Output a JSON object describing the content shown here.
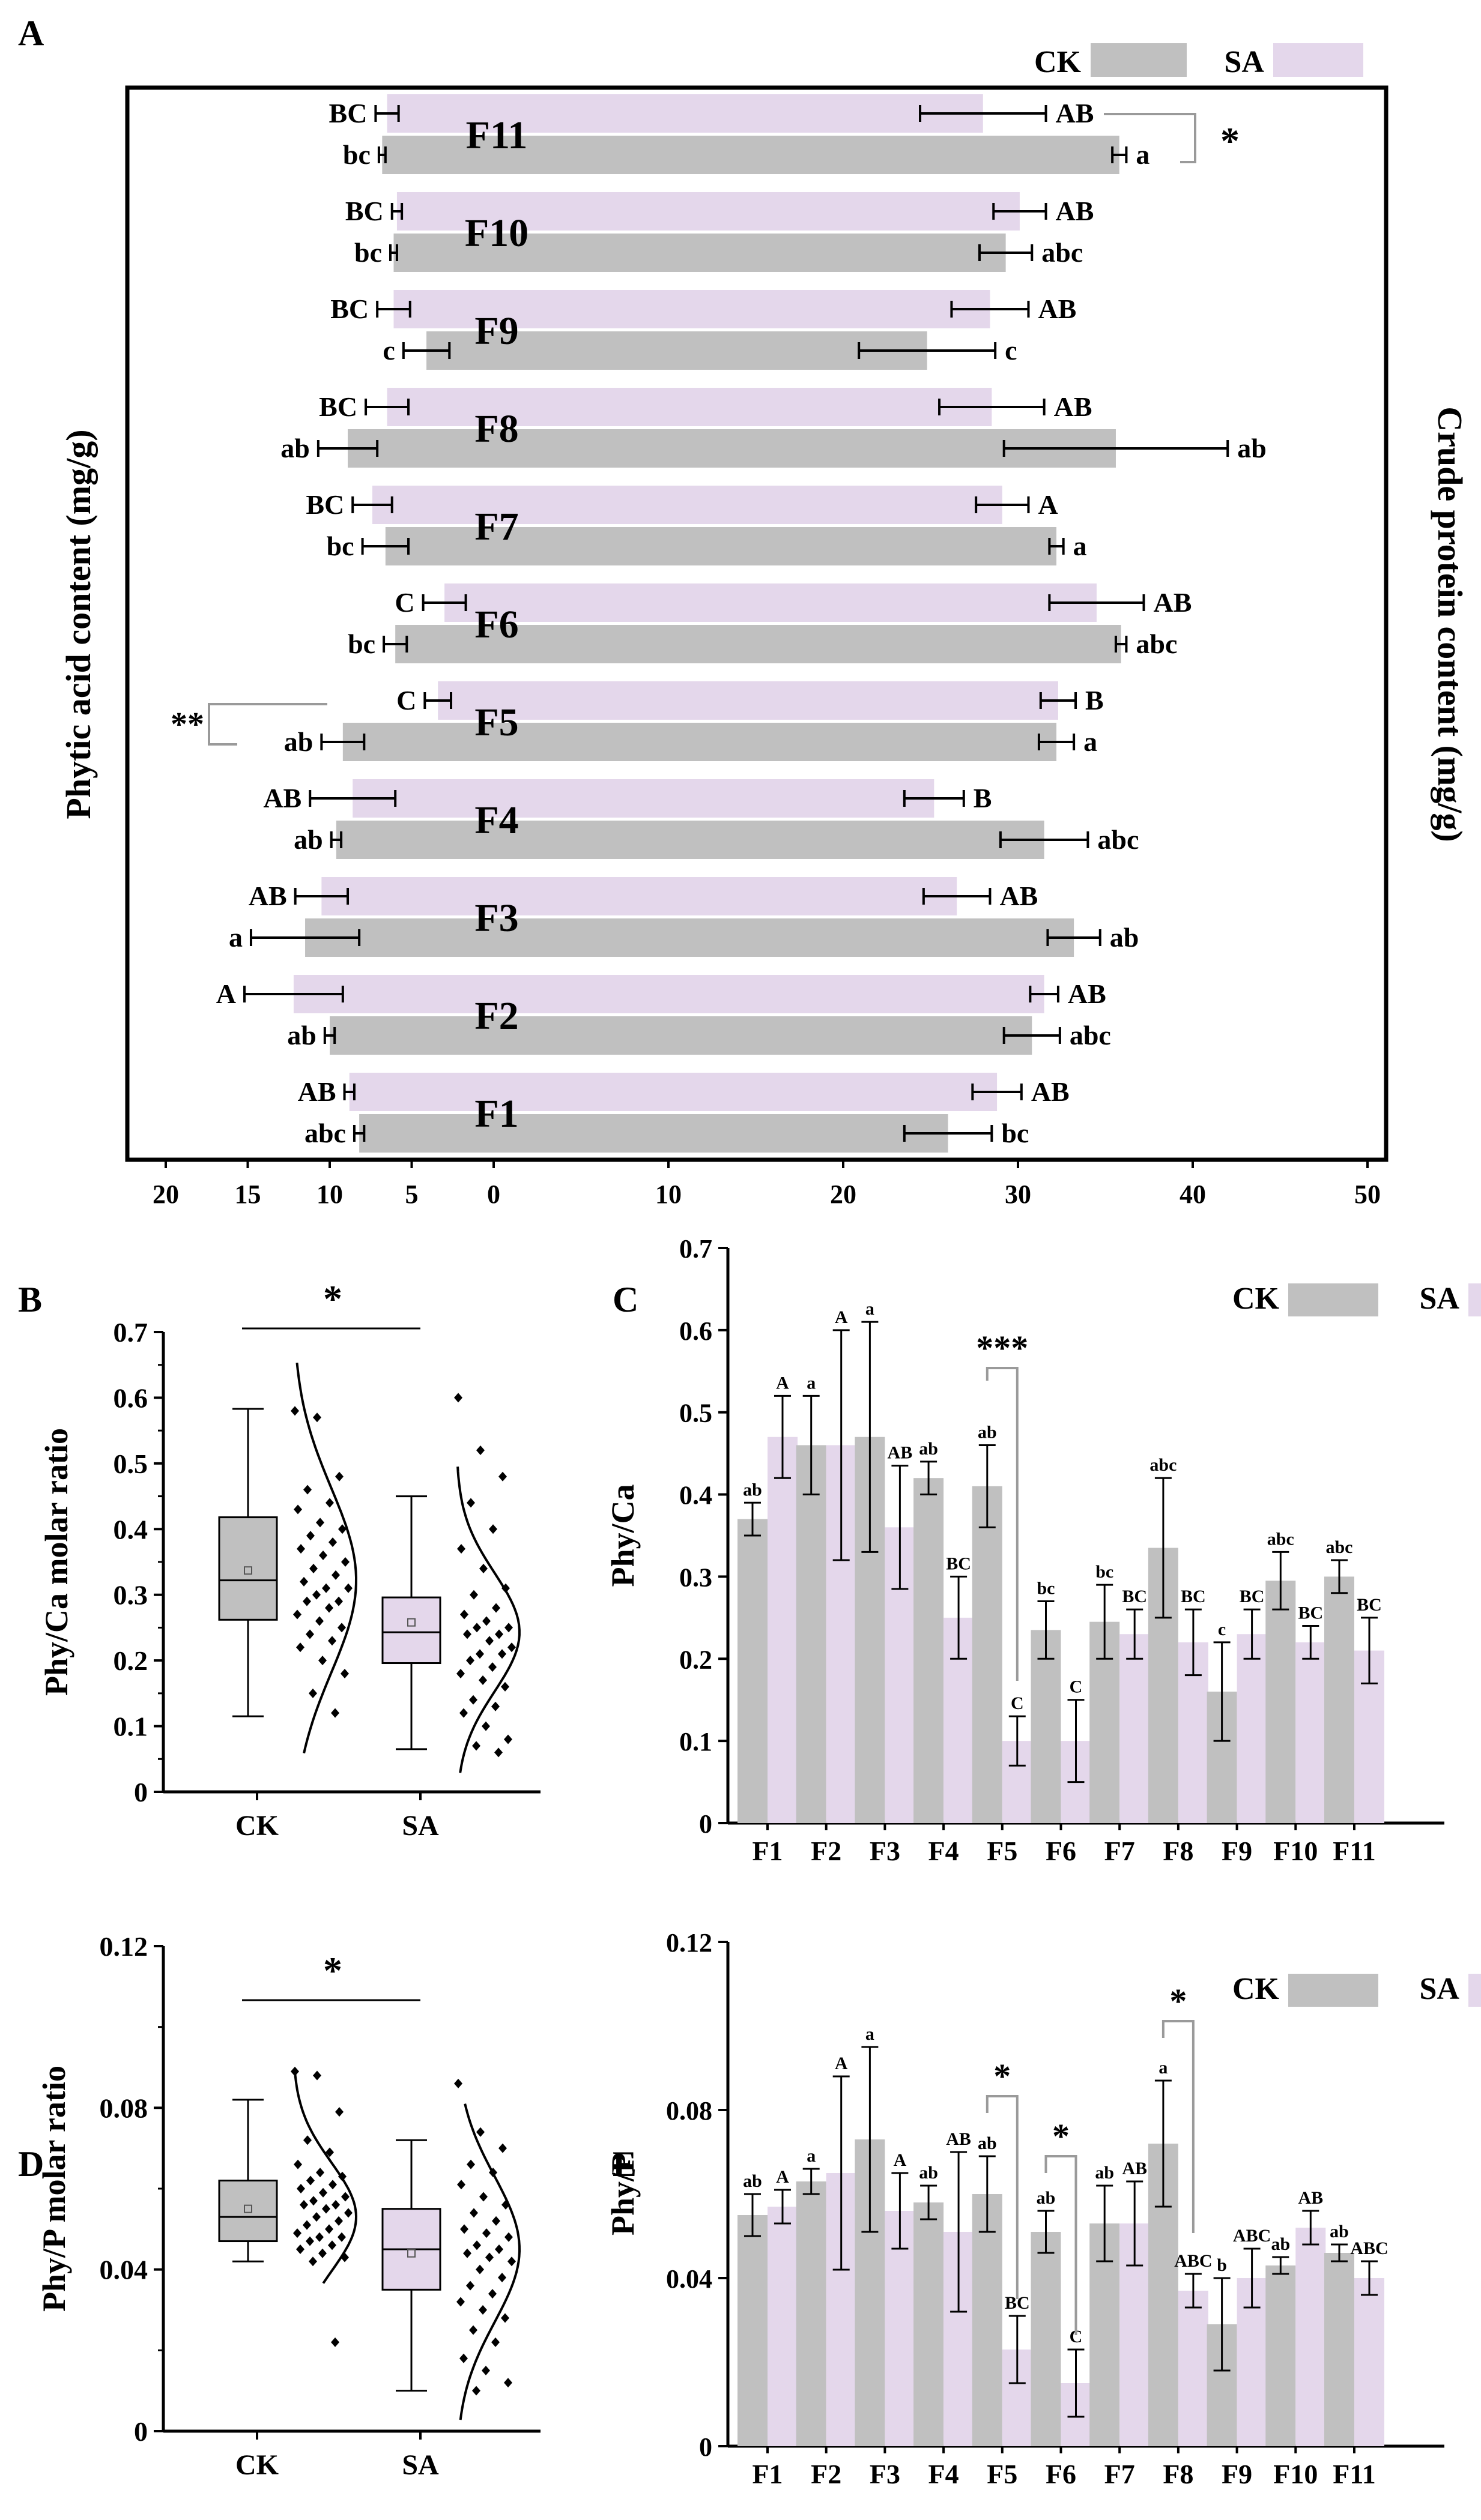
{
  "colors": {
    "ck": "#c0c0c0",
    "sa": "#e4d7eb",
    "axis": "#000000",
    "bracket": "#9a9a9a"
  },
  "chart_data": [
    {
      "panel": "A",
      "type": "bar",
      "orientation": "horizontal-butterfly",
      "legend": {
        "ck": "CK",
        "sa": "SA"
      },
      "xlabel_left": "Phytic acid content (mg/g)",
      "xlabel_right": "Crude protein content (mg/g)",
      "xlim": [
        -20,
        50
      ],
      "xticks": [
        -20,
        -15,
        -10,
        -5,
        0,
        10,
        20,
        30,
        40,
        50
      ],
      "xtick_labels": [
        "20",
        "15",
        "10",
        "5",
        "0",
        "10",
        "20",
        "30",
        "40",
        "50"
      ],
      "categories": [
        "F1",
        "F2",
        "F3",
        "F4",
        "F5",
        "F6",
        "F7",
        "F8",
        "F9",
        "F10",
        "F11"
      ],
      "series": [
        {
          "name": "CK",
          "measure": "Phytic acid",
          "values": [
            8.2,
            10.0,
            11.5,
            9.6,
            9.2,
            6.0,
            6.6,
            8.9,
            4.1,
            6.1,
            6.8
          ],
          "errors": [
            0.3,
            0.3,
            3.3,
            0.3,
            1.3,
            0.7,
            1.4,
            1.8,
            1.4,
            0.2,
            0.2
          ],
          "letters": [
            "abc",
            "ab",
            "a",
            "ab",
            "ab",
            "bc",
            "bc",
            "ab",
            "c",
            "bc",
            "bc"
          ]
        },
        {
          "name": "CK",
          "measure": "Crude protein",
          "values": [
            26.0,
            30.8,
            33.2,
            31.5,
            32.2,
            35.9,
            32.2,
            35.6,
            24.8,
            29.3,
            35.8
          ],
          "errors": [
            2.5,
            1.6,
            1.5,
            2.5,
            1.0,
            0.3,
            0.4,
            6.4,
            3.9,
            1.5,
            0.4
          ],
          "letters": [
            "bc",
            "abc",
            "ab",
            "abc",
            "a",
            "abc",
            "a",
            "ab",
            "c",
            "abc",
            "a"
          ]
        },
        {
          "name": "SA",
          "measure": "Phytic acid",
          "values": [
            8.8,
            12.2,
            10.5,
            8.6,
            3.4,
            3.0,
            7.4,
            6.5,
            6.1,
            5.9,
            6.5
          ],
          "errors": [
            0.3,
            3.0,
            1.6,
            2.6,
            0.8,
            1.3,
            1.2,
            1.3,
            1.0,
            0.3,
            0.7
          ],
          "letters": [
            "AB",
            "A",
            "AB",
            "AB",
            "C",
            "C",
            "BC",
            "BC",
            "BC",
            "BC",
            "BC"
          ]
        },
        {
          "name": "SA",
          "measure": "Crude protein",
          "values": [
            28.8,
            31.5,
            26.5,
            25.2,
            32.3,
            34.5,
            29.1,
            28.5,
            28.4,
            30.1,
            28.0
          ],
          "errors": [
            1.4,
            0.8,
            1.9,
            1.7,
            1.0,
            2.7,
            1.5,
            3.0,
            2.2,
            1.5,
            3.6
          ],
          "letters": [
            "AB",
            "AB",
            "AB",
            "B",
            "B",
            "AB",
            "A",
            "AB",
            "AB",
            "AB",
            "AB"
          ]
        }
      ],
      "annotations": [
        "*",
        "**"
      ]
    },
    {
      "panel": "B",
      "type": "box",
      "ylabel": "Phy/Ca molar ratio",
      "ylim": [
        0,
        0.7
      ],
      "yticks": [
        "0",
        "0.1",
        "0.2",
        "0.3",
        "0.4",
        "0.5",
        "0.6",
        "0.7"
      ],
      "categories": [
        "CK",
        "SA"
      ],
      "boxes": [
        {
          "name": "CK",
          "whisker_low": 0.115,
          "q1": 0.262,
          "median": 0.322,
          "q3": 0.418,
          "whisker_high": 0.583,
          "mean": 0.337
        },
        {
          "name": "SA",
          "whisker_low": 0.065,
          "q1": 0.196,
          "median": 0.243,
          "q3": 0.296,
          "whisker_high": 0.45,
          "mean": 0.258
        }
      ],
      "points": {
        "CK": [
          0.58,
          0.57,
          0.48,
          0.46,
          0.44,
          0.43,
          0.41,
          0.4,
          0.39,
          0.38,
          0.37,
          0.36,
          0.35,
          0.34,
          0.33,
          0.32,
          0.31,
          0.31,
          0.3,
          0.29,
          0.29,
          0.28,
          0.27,
          0.26,
          0.25,
          0.24,
          0.23,
          0.22,
          0.2,
          0.18,
          0.15,
          0.12
        ],
        "SA": [
          0.6,
          0.52,
          0.48,
          0.44,
          0.4,
          0.37,
          0.34,
          0.31,
          0.3,
          0.28,
          0.27,
          0.26,
          0.25,
          0.25,
          0.24,
          0.24,
          0.23,
          0.22,
          0.21,
          0.21,
          0.2,
          0.19,
          0.18,
          0.17,
          0.16,
          0.14,
          0.13,
          0.12,
          0.1,
          0.08,
          0.07,
          0.06
        ]
      },
      "significance": "*"
    },
    {
      "panel": "C",
      "type": "bar",
      "ylabel": "Phy/Ca",
      "ylim": [
        0,
        0.7
      ],
      "yticks": [
        "0",
        "0.1",
        "0.2",
        "0.3",
        "0.4",
        "0.5",
        "0.6",
        "0.7"
      ],
      "legend": {
        "ck": "CK",
        "sa": "SA"
      },
      "categories": [
        "F1",
        "F2",
        "F3",
        "F4",
        "F5",
        "F6",
        "F7",
        "F8",
        "F9",
        "F10",
        "F11"
      ],
      "series": [
        {
          "name": "CK",
          "values": [
            0.37,
            0.46,
            0.47,
            0.42,
            0.41,
            0.235,
            0.245,
            0.335,
            0.16,
            0.295,
            0.3
          ],
          "errors": [
            0.02,
            0.06,
            0.14,
            0.02,
            0.05,
            0.035,
            0.045,
            0.085,
            0.06,
            0.035,
            0.02
          ],
          "letters": [
            "ab",
            "a",
            "a",
            "ab",
            "ab",
            "bc",
            "bc",
            "abc",
            "c",
            "abc",
            "abc"
          ]
        },
        {
          "name": "SA",
          "values": [
            0.47,
            0.46,
            0.36,
            0.25,
            0.1,
            0.1,
            0.23,
            0.22,
            0.23,
            0.22,
            0.21
          ],
          "errors": [
            0.05,
            0.14,
            0.075,
            0.05,
            0.03,
            0.05,
            0.03,
            0.04,
            0.03,
            0.02,
            0.04
          ],
          "letters": [
            "A",
            "A",
            "AB",
            "BC",
            "C",
            "C",
            "BC",
            "BC",
            "BC",
            "BC",
            "BC"
          ]
        }
      ],
      "annotations": [
        "***"
      ]
    },
    {
      "panel": "D",
      "type": "box",
      "ylabel": "Phy/P molar ratio",
      "ylim": [
        0,
        0.12
      ],
      "yticks": [
        "0",
        "0.04",
        "0.08",
        "0.12"
      ],
      "categories": [
        "CK",
        "SA"
      ],
      "boxes": [
        {
          "name": "CK",
          "whisker_low": 0.042,
          "q1": 0.047,
          "median": 0.053,
          "q3": 0.062,
          "whisker_high": 0.082,
          "mean": 0.055
        },
        {
          "name": "SA",
          "whisker_low": 0.01,
          "q1": 0.035,
          "median": 0.045,
          "q3": 0.055,
          "whisker_high": 0.072,
          "mean": 0.044
        }
      ],
      "points": {
        "CK": [
          0.089,
          0.088,
          0.079,
          0.072,
          0.069,
          0.066,
          0.064,
          0.063,
          0.062,
          0.061,
          0.06,
          0.059,
          0.058,
          0.057,
          0.056,
          0.056,
          0.055,
          0.054,
          0.053,
          0.052,
          0.051,
          0.05,
          0.049,
          0.048,
          0.048,
          0.047,
          0.046,
          0.045,
          0.044,
          0.043,
          0.042,
          0.022
        ],
        "SA": [
          0.086,
          0.074,
          0.07,
          0.066,
          0.064,
          0.061,
          0.058,
          0.056,
          0.054,
          0.052,
          0.05,
          0.049,
          0.048,
          0.046,
          0.045,
          0.044,
          0.043,
          0.042,
          0.04,
          0.038,
          0.036,
          0.034,
          0.032,
          0.03,
          0.028,
          0.025,
          0.022,
          0.018,
          0.015,
          0.012,
          0.01
        ]
      },
      "significance": "*"
    },
    {
      "panel": "E",
      "type": "bar",
      "ylabel": "Phy/P",
      "ylim": [
        0,
        0.12
      ],
      "yticks": [
        "0",
        "0.04",
        "0.08",
        "0.12"
      ],
      "legend": {
        "ck": "CK",
        "sa": "SA"
      },
      "categories": [
        "F1",
        "F2",
        "F3",
        "F4",
        "F5",
        "F6",
        "F7",
        "F8",
        "F9",
        "F10",
        "F11"
      ],
      "series": [
        {
          "name": "CK",
          "values": [
            0.055,
            0.063,
            0.073,
            0.058,
            0.06,
            0.051,
            0.053,
            0.072,
            0.029,
            0.043,
            0.046
          ],
          "errors": [
            0.005,
            0.003,
            0.022,
            0.004,
            0.009,
            0.005,
            0.009,
            0.015,
            0.011,
            0.002,
            0.002
          ],
          "letters": [
            "ab",
            "a",
            "a",
            "ab",
            "ab",
            "ab",
            "ab",
            "a",
            "b",
            "ab",
            "ab"
          ]
        },
        {
          "name": "SA",
          "values": [
            0.057,
            0.065,
            0.056,
            0.051,
            0.023,
            0.015,
            0.053,
            0.037,
            0.04,
            0.052,
            0.04
          ],
          "errors": [
            0.004,
            0.023,
            0.009,
            0.019,
            0.008,
            0.008,
            0.01,
            0.004,
            0.007,
            0.004,
            0.004
          ],
          "letters": [
            "A",
            "A",
            "A",
            "AB",
            "BC",
            "C",
            "AB",
            "ABC",
            "ABC",
            "AB",
            "ABC"
          ]
        }
      ],
      "annotations": [
        "*",
        "*",
        "*"
      ]
    }
  ],
  "panel_labels": [
    "A",
    "B",
    "C",
    "D",
    "E"
  ]
}
